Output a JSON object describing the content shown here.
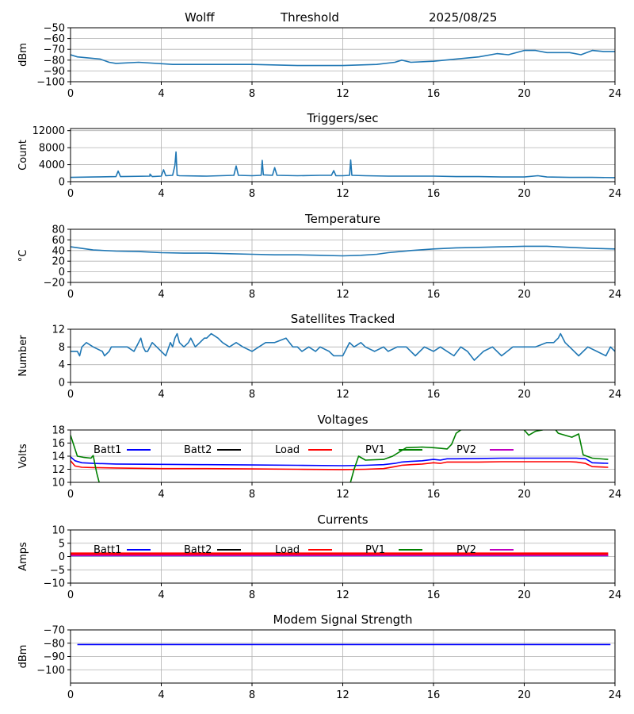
{
  "header": {
    "station": "Wolff",
    "threshold_label": "Threshold",
    "date": "2025/08/25"
  },
  "x_axis": {
    "ticks": [
      0,
      4,
      8,
      12,
      16,
      20,
      24
    ],
    "range": [
      0,
      24
    ]
  },
  "chart_data": [
    {
      "id": "threshold",
      "type": "line",
      "title": "",
      "ylabel": "dBm",
      "ylim": [
        -100,
        -50
      ],
      "yticks": [
        -100,
        -90,
        -80,
        -70,
        -60,
        -50
      ],
      "yticklabels": [
        "−100",
        "−90",
        "−80",
        "−70",
        "−60",
        "−50"
      ],
      "grid": true,
      "series": [
        {
          "color": "#1f77b4",
          "x": [
            0,
            0.3,
            0.8,
            1.3,
            1.7,
            2.0,
            3.0,
            4.5,
            6.0,
            8.0,
            10.0,
            12.0,
            13.5,
            14.3,
            14.6,
            15.0,
            16.0,
            17.0,
            18.0,
            18.8,
            19.3,
            20.0,
            20.5,
            21.0,
            22.0,
            22.5,
            23.0,
            23.5,
            24.0
          ],
          "y": [
            -75,
            -77,
            -78,
            -79,
            -82,
            -83,
            -82,
            -84,
            -84,
            -84,
            -85,
            -85,
            -84,
            -82,
            -80,
            -82,
            -81,
            -79,
            -77,
            -74,
            -75,
            -71,
            -71,
            -73,
            -73,
            -75,
            -71,
            -72,
            -72
          ]
        }
      ]
    },
    {
      "id": "triggers",
      "type": "line",
      "title": "Triggers/sec",
      "ylabel": "Count",
      "ylim": [
        0,
        12500
      ],
      "yticks": [
        0,
        4000,
        8000,
        12000
      ],
      "yticklabels": [
        "0",
        "4000",
        "8000",
        "12000"
      ],
      "grid": true,
      "series": [
        {
          "color": "#1f77b4",
          "x": [
            0,
            1.0,
            2.0,
            2.1,
            2.2,
            3.5,
            3.5,
            3.6,
            4.0,
            4.1,
            4.2,
            4.5,
            4.6,
            4.65,
            4.7,
            4.8,
            6.0,
            7.2,
            7.3,
            7.4,
            8.0,
            8.4,
            8.45,
            8.5,
            8.9,
            9.0,
            9.1,
            10.0,
            11.0,
            11.5,
            11.6,
            11.7,
            12.0,
            12.3,
            12.35,
            12.4,
            13.0,
            14.0,
            15.0,
            16.0,
            17.0,
            18.0,
            19.0,
            20.0,
            20.6,
            21.0,
            22.0,
            23.0,
            24.0
          ],
          "y": [
            1000,
            1100,
            1200,
            2500,
            1200,
            1300,
            1800,
            1200,
            1300,
            2800,
            1400,
            1500,
            3800,
            7000,
            1500,
            1400,
            1300,
            1500,
            3700,
            1500,
            1400,
            1500,
            5000,
            1600,
            1500,
            3300,
            1500,
            1400,
            1500,
            1500,
            2600,
            1400,
            1400,
            1500,
            5100,
            1500,
            1400,
            1300,
            1300,
            1300,
            1200,
            1200,
            1100,
            1100,
            1400,
            1100,
            1000,
            1000,
            950
          ]
        }
      ]
    },
    {
      "id": "temperature",
      "type": "line",
      "title": "Temperature",
      "ylabel": "°C",
      "ylim": [
        -20,
        80
      ],
      "yticks": [
        -20,
        0,
        20,
        40,
        60,
        80
      ],
      "yticklabels": [
        "−20",
        "0",
        "20",
        "40",
        "60",
        "80"
      ],
      "grid": true,
      "series": [
        {
          "color": "#1f77b4",
          "x": [
            0,
            0.5,
            1,
            2,
            3,
            4,
            5,
            6,
            7,
            8,
            9,
            10,
            11,
            12,
            12.8,
            13.5,
            14,
            15,
            16,
            17,
            18,
            19,
            20,
            21,
            22,
            23,
            24
          ],
          "y": [
            47,
            44,
            41,
            39,
            38,
            36,
            35,
            35,
            34,
            33,
            32,
            32,
            31,
            30,
            31,
            33,
            36,
            40,
            43,
            45,
            46,
            47,
            48,
            48,
            46,
            44,
            43
          ]
        }
      ]
    },
    {
      "id": "satellites",
      "type": "line",
      "title": "Satellites Tracked",
      "ylabel": "Number",
      "ylim": [
        0,
        12
      ],
      "yticks": [
        0,
        4,
        8,
        12
      ],
      "yticklabels": [
        "0",
        "4",
        "8",
        "12"
      ],
      "grid": true,
      "series": [
        {
          "color": "#1f77b4",
          "x": [
            0,
            0.3,
            0.4,
            0.5,
            0.7,
            1.0,
            1.4,
            1.5,
            1.7,
            1.8,
            2.2,
            2.5,
            2.8,
            3.0,
            3.1,
            3.2,
            3.3,
            3.4,
            3.6,
            3.8,
            4.0,
            4.2,
            4.4,
            4.5,
            4.6,
            4.7,
            4.8,
            5.0,
            5.2,
            5.3,
            5.5,
            5.7,
            5.9,
            6.0,
            6.2,
            6.5,
            6.7,
            7.0,
            7.3,
            7.6,
            8.0,
            8.3,
            8.6,
            9.0,
            9.5,
            9.8,
            10.0,
            10.2,
            10.5,
            10.8,
            11.0,
            11.4,
            11.6,
            12.0,
            12.3,
            12.5,
            12.8,
            13.0,
            13.4,
            13.8,
            14.0,
            14.4,
            14.8,
            15.2,
            15.6,
            16.0,
            16.3,
            16.6,
            16.9,
            17.2,
            17.5,
            17.8,
            18.2,
            18.6,
            19.0,
            19.5,
            20.0,
            20.5,
            21.0,
            21.3,
            21.5,
            21.6,
            21.8,
            22.0,
            22.4,
            22.8,
            23.2,
            23.6,
            23.8,
            24.0
          ],
          "y": [
            7,
            7,
            6,
            8,
            9,
            8,
            7,
            6,
            7,
            8,
            8,
            8,
            7,
            9,
            10,
            8,
            7,
            7,
            9,
            8,
            7,
            6,
            9,
            8,
            10,
            11,
            9,
            8,
            9,
            10,
            8,
            9,
            10,
            10,
            11,
            10,
            9,
            8,
            9,
            8,
            7,
            8,
            9,
            9,
            10,
            8,
            8,
            7,
            8,
            7,
            8,
            7,
            6,
            6,
            9,
            8,
            9,
            8,
            7,
            8,
            7,
            8,
            8,
            6,
            8,
            7,
            8,
            7,
            6,
            8,
            7,
            5,
            7,
            8,
            6,
            8,
            8,
            8,
            9,
            9,
            10,
            11,
            9,
            8,
            6,
            8,
            7,
            6,
            8,
            7
          ]
        }
      ]
    },
    {
      "id": "voltages",
      "type": "line",
      "title": "Voltages",
      "ylabel": "Volts",
      "ylim": [
        10,
        18
      ],
      "yticks": [
        10,
        12,
        14,
        16,
        18
      ],
      "yticklabels": [
        "10",
        "12",
        "14",
        "16",
        "18"
      ],
      "grid": true,
      "legend": [
        "Batt1",
        "Batt2",
        "Load",
        "PV1",
        "PV2"
      ],
      "legend_colors": [
        "#0000ff",
        "#000000",
        "#ff0000",
        "#008000",
        "#bf00bf"
      ],
      "series": [
        {
          "name": "Batt1",
          "color": "#0000ff",
          "x": [
            0,
            0.2,
            0.5,
            1,
            2,
            4,
            6,
            8,
            10,
            12,
            13,
            13.8,
            14.3,
            14.6,
            15,
            15.5,
            16,
            16.3,
            16.6,
            17,
            18,
            19,
            20,
            21,
            22,
            22.3,
            22.7,
            23,
            23.7
          ],
          "y": [
            13.9,
            13.3,
            13.0,
            12.9,
            12.8,
            12.75,
            12.7,
            12.65,
            12.6,
            12.55,
            12.6,
            12.7,
            12.9,
            13.1,
            13.2,
            13.3,
            13.5,
            13.4,
            13.6,
            13.6,
            13.65,
            13.7,
            13.7,
            13.7,
            13.7,
            13.7,
            13.6,
            13.0,
            12.9
          ]
        },
        {
          "name": "Load",
          "color": "#ff0000",
          "x": [
            0,
            0.2,
            0.5,
            1,
            2,
            4,
            6,
            8,
            10,
            12,
            13,
            13.8,
            14.3,
            14.6,
            15,
            15.5,
            16,
            16.3,
            16.6,
            17,
            18,
            19,
            20,
            21,
            22,
            22.3,
            22.7,
            23,
            23.7
          ],
          "y": [
            13.3,
            12.5,
            12.3,
            12.25,
            12.2,
            12.1,
            12.1,
            12.05,
            12.0,
            11.95,
            12.0,
            12.1,
            12.4,
            12.6,
            12.7,
            12.8,
            13.0,
            12.9,
            13.1,
            13.1,
            13.1,
            13.15,
            13.15,
            13.15,
            13.15,
            13.1,
            12.9,
            12.4,
            12.3
          ]
        },
        {
          "name": "PV1",
          "color": "#008000",
          "x": [
            0,
            0.3,
            0.6,
            0.9,
            1.0,
            1.15,
            1.3
          ],
          "y": [
            17.2,
            14.0,
            13.8,
            13.7,
            14.1,
            11.5,
            9.5
          ]
        },
        {
          "name": "PV1",
          "color": "#008000",
          "x": [
            12.3,
            12.5,
            12.7,
            13.0,
            13.8,
            14.2,
            14.8,
            15.5,
            16.0,
            16.3,
            16.6,
            16.8,
            17.0,
            17.2,
            17.6
          ],
          "y": [
            9.5,
            12.0,
            14.0,
            13.4,
            13.5,
            14.0,
            15.3,
            15.4,
            15.3,
            15.2,
            15.1,
            15.8,
            17.5,
            18.0,
            18.4
          ]
        },
        {
          "name": "PV1",
          "color": "#008000",
          "x": [
            19.9,
            20.2,
            20.5,
            20.8,
            21.1
          ],
          "y": [
            18.4,
            17.2,
            17.8,
            18.0,
            18.4
          ]
        },
        {
          "name": "PV1",
          "color": "#008000",
          "x": [
            21.3,
            21.5,
            21.8,
            22.1,
            22.4,
            22.6,
            23.0,
            23.7
          ],
          "y": [
            18.4,
            17.5,
            17.2,
            16.9,
            17.4,
            14.2,
            13.7,
            13.5
          ]
        }
      ]
    },
    {
      "id": "currents",
      "type": "line",
      "title": "Currents",
      "ylabel": "Amps",
      "ylim": [
        -10,
        10
      ],
      "yticks": [
        -10,
        -5,
        0,
        5,
        10
      ],
      "yticklabels": [
        "−10",
        "−5",
        "0",
        "5",
        "10"
      ],
      "grid": true,
      "legend": [
        "Batt1",
        "Batt2",
        "Load",
        "PV1",
        "PV2"
      ],
      "legend_colors": [
        "#0000ff",
        "#000000",
        "#ff0000",
        "#008000",
        "#bf00bf"
      ],
      "series": [
        {
          "name": "Load",
          "color": "#ff0000",
          "x": [
            0,
            23.7
          ],
          "y": [
            1.0,
            1.0
          ]
        },
        {
          "name": "Batt1",
          "color": "#0000ff",
          "x": [
            0,
            23.7
          ],
          "y": [
            0.3,
            0.3
          ]
        },
        {
          "name": "PV2",
          "color": "#bf00bf",
          "x": [
            0,
            23.7
          ],
          "y": [
            0.4,
            0.4
          ]
        }
      ]
    },
    {
      "id": "modem",
      "type": "line",
      "title": "Modem Signal Strength",
      "ylabel": "dBm",
      "ylim": [
        -110,
        -70
      ],
      "yticks": [
        -100,
        -90,
        -80,
        -70
      ],
      "yticklabels": [
        "−100",
        "−90",
        "−80",
        "−70"
      ],
      "grid": true,
      "series": [
        {
          "color": "#0000ff",
          "x": [
            0.3,
            23.8
          ],
          "y": [
            -81,
            -81
          ]
        }
      ]
    }
  ]
}
